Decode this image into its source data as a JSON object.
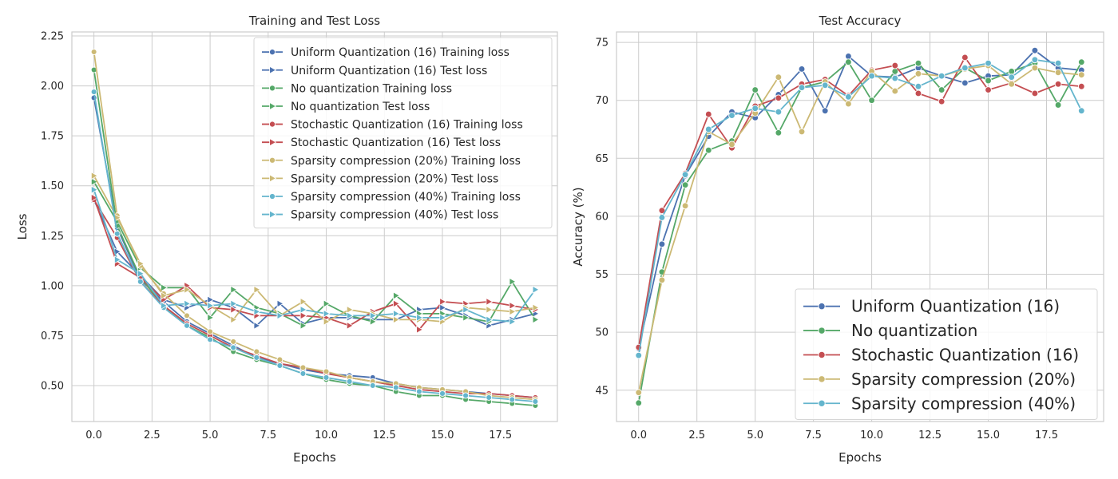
{
  "chart_data": [
    {
      "type": "line",
      "title": "Training and Test Loss",
      "xlabel": "Epochs",
      "ylabel": "Loss",
      "xlim": [
        -0.95,
        19.95
      ],
      "ylim": [
        0.32,
        2.27
      ],
      "xticks": [
        0.0,
        2.5,
        5.0,
        7.5,
        10.0,
        12.5,
        15.0,
        17.5
      ],
      "xtick_labels": [
        "0.0",
        "2.5",
        "5.0",
        "7.5",
        "10.0",
        "12.5",
        "15.0",
        "17.5"
      ],
      "yticks": [
        0.5,
        0.75,
        1.0,
        1.25,
        1.5,
        1.75,
        2.0,
        2.25
      ],
      "ytick_labels": [
        "0.50",
        "0.75",
        "1.00",
        "1.25",
        "1.50",
        "1.75",
        "2.00",
        "2.25"
      ],
      "grid": true,
      "legend_position": "top-right",
      "x": [
        0,
        1,
        2,
        3,
        4,
        5,
        6,
        7,
        8,
        9,
        10,
        11,
        12,
        13,
        14,
        15,
        16,
        17,
        18,
        19
      ],
      "series": [
        {
          "name": "Uniform Quantization (16) Training loss",
          "color": "#4c72b0",
          "marker": "circle",
          "values": [
            1.94,
            1.29,
            1.03,
            0.92,
            0.82,
            0.76,
            0.7,
            0.64,
            0.61,
            0.58,
            0.56,
            0.55,
            0.54,
            0.51,
            0.49,
            0.48,
            0.47,
            0.46,
            0.45,
            0.44
          ]
        },
        {
          "name": "Uniform Quantization (16) Test loss",
          "color": "#4c72b0",
          "marker": "triangle-right",
          "values": [
            1.43,
            1.17,
            1.05,
            0.93,
            0.89,
            0.93,
            0.89,
            0.8,
            0.91,
            0.81,
            0.84,
            0.84,
            0.83,
            0.83,
            0.88,
            0.89,
            0.85,
            0.8,
            0.83,
            0.86
          ]
        },
        {
          "name": "No quantization Training loss",
          "color": "#55a868",
          "marker": "circle",
          "values": [
            2.08,
            1.3,
            1.04,
            0.9,
            0.8,
            0.74,
            0.67,
            0.63,
            0.6,
            0.56,
            0.53,
            0.51,
            0.5,
            0.47,
            0.45,
            0.45,
            0.43,
            0.42,
            0.41,
            0.4
          ]
        },
        {
          "name": "No quantization Test loss",
          "color": "#55a868",
          "marker": "triangle-right",
          "values": [
            1.52,
            1.32,
            1.09,
            0.99,
            0.99,
            0.84,
            0.98,
            0.89,
            0.86,
            0.8,
            0.91,
            0.85,
            0.82,
            0.95,
            0.86,
            0.86,
            0.84,
            0.82,
            1.02,
            0.83
          ]
        },
        {
          "name": "Stochastic Quantization (16) Training loss",
          "color": "#c44e52",
          "marker": "circle",
          "values": [
            1.43,
            1.24,
            1.02,
            0.9,
            0.81,
            0.75,
            0.69,
            0.65,
            0.61,
            0.59,
            0.56,
            0.54,
            0.52,
            0.5,
            0.48,
            0.47,
            0.46,
            0.46,
            0.45,
            0.44
          ]
        },
        {
          "name": "Stochastic Quantization (16) Test loss",
          "color": "#c44e52",
          "marker": "triangle-right",
          "values": [
            1.44,
            1.11,
            1.04,
            0.93,
            1.0,
            0.89,
            0.88,
            0.85,
            0.85,
            0.85,
            0.84,
            0.8,
            0.87,
            0.91,
            0.78,
            0.92,
            0.91,
            0.92,
            0.9,
            0.88
          ]
        },
        {
          "name": "Sparsity compression (20%) Training loss",
          "color": "#ccb974",
          "marker": "circle",
          "values": [
            2.17,
            1.35,
            1.1,
            0.96,
            0.85,
            0.77,
            0.72,
            0.67,
            0.63,
            0.59,
            0.57,
            0.54,
            0.52,
            0.51,
            0.49,
            0.48,
            0.47,
            0.45,
            0.44,
            0.43
          ]
        },
        {
          "name": "Sparsity compression (20%) Test loss",
          "color": "#ccb974",
          "marker": "triangle-right",
          "values": [
            1.55,
            1.34,
            1.11,
            0.95,
            0.98,
            0.9,
            0.83,
            0.98,
            0.85,
            0.92,
            0.82,
            0.88,
            0.86,
            0.83,
            0.83,
            0.82,
            0.89,
            0.88,
            0.87,
            0.89
          ]
        },
        {
          "name": "Sparsity compression (40%) Training loss",
          "color": "#64b5cd",
          "marker": "circle",
          "values": [
            1.97,
            1.26,
            1.02,
            0.89,
            0.8,
            0.73,
            0.69,
            0.64,
            0.6,
            0.56,
            0.54,
            0.52,
            0.5,
            0.49,
            0.47,
            0.46,
            0.45,
            0.44,
            0.43,
            0.42
          ]
        },
        {
          "name": "Sparsity compression (40%) Test loss",
          "color": "#64b5cd",
          "marker": "triangle-right",
          "values": [
            1.48,
            1.13,
            1.06,
            0.9,
            0.91,
            0.9,
            0.91,
            0.87,
            0.85,
            0.88,
            0.86,
            0.85,
            0.85,
            0.86,
            0.84,
            0.84,
            0.88,
            0.83,
            0.82,
            0.98
          ]
        }
      ]
    },
    {
      "type": "line",
      "title": "Test Accuracy",
      "xlabel": "Epochs",
      "ylabel": "Accuracy (%)",
      "xlim": [
        -0.95,
        19.95
      ],
      "ylim": [
        42.3,
        75.9
      ],
      "xticks": [
        0.0,
        2.5,
        5.0,
        7.5,
        10.0,
        12.5,
        15.0,
        17.5
      ],
      "xtick_labels": [
        "0.0",
        "2.5",
        "5.0",
        "7.5",
        "10.0",
        "12.5",
        "15.0",
        "17.5"
      ],
      "yticks": [
        45,
        50,
        55,
        60,
        65,
        70,
        75
      ],
      "ytick_labels": [
        "45",
        "50",
        "55",
        "60",
        "65",
        "70",
        "75"
      ],
      "grid": true,
      "legend_position": "lower-right",
      "x": [
        0,
        1,
        2,
        3,
        4,
        5,
        6,
        7,
        8,
        9,
        10,
        11,
        12,
        13,
        14,
        15,
        16,
        17,
        18,
        19
      ],
      "series": [
        {
          "name": "Uniform Quantization (16)",
          "color": "#4c72b0",
          "marker": "circle",
          "values": [
            48.6,
            57.6,
            63.5,
            66.9,
            69.0,
            68.5,
            70.5,
            72.7,
            69.1,
            73.8,
            72.1,
            72.0,
            72.8,
            72.1,
            71.5,
            72.1,
            72.2,
            74.3,
            72.8,
            72.6
          ]
        },
        {
          "name": "No quantization",
          "color": "#55a868",
          "marker": "circle",
          "values": [
            43.9,
            55.2,
            62.7,
            65.7,
            66.5,
            70.9,
            67.2,
            71.1,
            71.6,
            73.3,
            70.0,
            72.5,
            73.2,
            70.9,
            72.8,
            71.7,
            72.5,
            73.2,
            69.6,
            73.3
          ]
        },
        {
          "name": "Stochastic Quantization (16)",
          "color": "#c44e52",
          "marker": "circle",
          "values": [
            48.7,
            60.5,
            63.7,
            68.8,
            65.9,
            69.5,
            70.2,
            71.4,
            71.8,
            70.4,
            72.6,
            73.0,
            70.6,
            69.9,
            73.7,
            70.9,
            71.5,
            70.6,
            71.4,
            71.2
          ]
        },
        {
          "name": "Sparsity compression (20%)",
          "color": "#ccb974",
          "marker": "circle",
          "values": [
            44.8,
            54.5,
            60.9,
            67.3,
            66.2,
            68.9,
            72.0,
            67.3,
            71.6,
            69.7,
            72.5,
            70.8,
            72.3,
            72.1,
            72.7,
            73.0,
            71.4,
            72.8,
            72.4,
            72.2
          ]
        },
        {
          "name": "Sparsity compression (40%)",
          "color": "#64b5cd",
          "marker": "circle",
          "values": [
            48.0,
            59.9,
            63.6,
            67.5,
            68.7,
            69.3,
            69.0,
            71.1,
            71.3,
            70.3,
            72.1,
            71.9,
            71.2,
            72.1,
            72.8,
            73.2,
            72.0,
            73.5,
            73.2,
            69.1
          ]
        }
      ]
    }
  ]
}
